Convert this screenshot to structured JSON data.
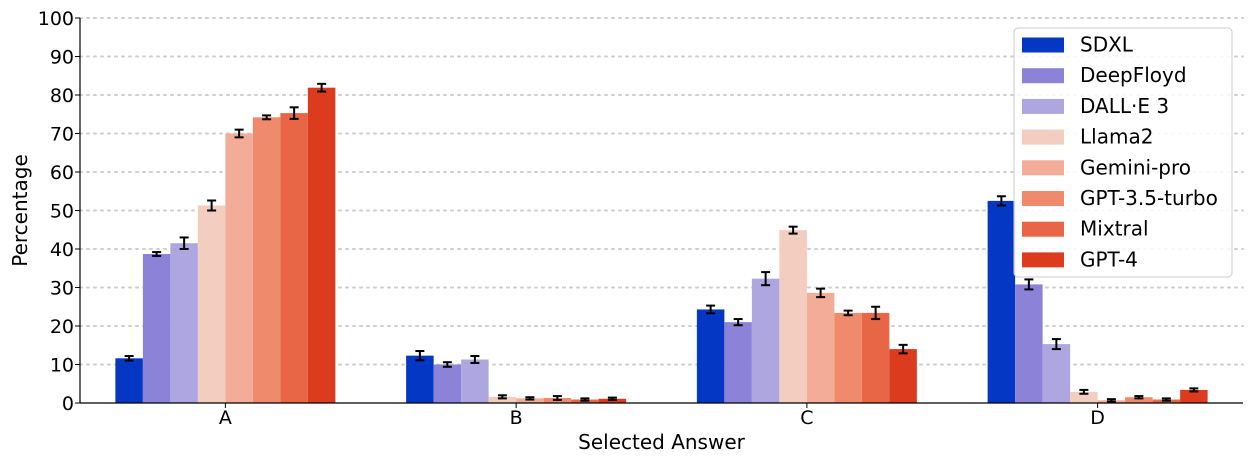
{
  "chart_data": {
    "type": "bar",
    "title": "",
    "xlabel": "Selected Answer",
    "ylabel": "Percentage",
    "ylim": [
      0,
      100
    ],
    "yticks": [
      0,
      10,
      20,
      30,
      40,
      50,
      60,
      70,
      80,
      90,
      100
    ],
    "grid": "horizontal dotted",
    "legend_position": "top-right",
    "categories": [
      "A",
      "B",
      "C",
      "D"
    ],
    "series": [
      {
        "name": "SDXL",
        "color": "#0437c4",
        "values": [
          11.6,
          12.3,
          24.3,
          52.5
        ],
        "errors": [
          0.6,
          1.2,
          1.0,
          1.2
        ]
      },
      {
        "name": "DeepFloyd",
        "color": "#8c83d9",
        "values": [
          38.7,
          10.0,
          21.0,
          30.8
        ],
        "errors": [
          0.5,
          0.6,
          0.8,
          1.3
        ]
      },
      {
        "name": "DALL·E 3",
        "color": "#aea6e0",
        "values": [
          41.5,
          11.3,
          32.3,
          15.3
        ],
        "errors": [
          1.5,
          0.9,
          1.7,
          1.3
        ]
      },
      {
        "name": "Llama2",
        "color": "#f4cdc1",
        "values": [
          51.3,
          1.6,
          44.9,
          2.9
        ],
        "errors": [
          1.3,
          0.4,
          0.9,
          0.5
        ]
      },
      {
        "name": "Gemini-pro",
        "color": "#f3ac98",
        "values": [
          70.0,
          1.2,
          28.6,
          0.7
        ],
        "errors": [
          1.0,
          0.3,
          1.1,
          0.3
        ]
      },
      {
        "name": "GPT-3.5-turbo",
        "color": "#ef8a6d",
        "values": [
          74.2,
          1.3,
          23.4,
          1.5
        ],
        "errors": [
          0.5,
          0.5,
          0.6,
          0.3
        ]
      },
      {
        "name": "Mixtral",
        "color": "#e86546",
        "values": [
          75.3,
          0.9,
          23.4,
          0.9
        ],
        "errors": [
          1.5,
          0.3,
          1.6,
          0.3
        ]
      },
      {
        "name": "GPT-4",
        "color": "#dd3b1e",
        "values": [
          81.9,
          1.1,
          14.0,
          3.4
        ],
        "errors": [
          1.0,
          0.3,
          1.1,
          0.4
        ]
      }
    ]
  }
}
